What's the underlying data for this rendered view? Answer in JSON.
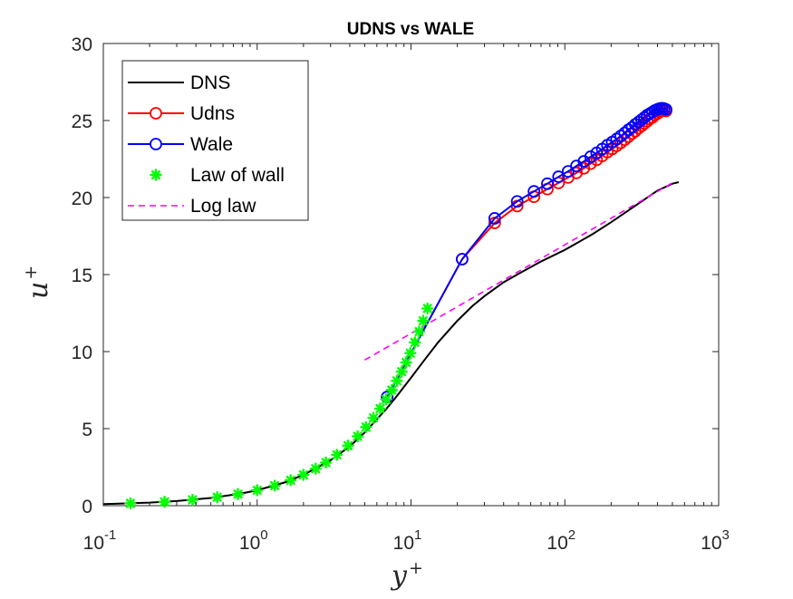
{
  "chart_data": {
    "type": "line",
    "title": "UDNS vs WALE",
    "xlabel": "y",
    "xlabel_sup": "+",
    "ylabel": "u",
    "ylabel_sup": "+",
    "xscale": "log",
    "xlim": [
      0.1,
      1000
    ],
    "ylim": [
      0,
      30
    ],
    "xticks": [
      {
        "base": "10",
        "exp": "-1",
        "value": 0.1
      },
      {
        "base": "10",
        "exp": "0",
        "value": 1
      },
      {
        "base": "10",
        "exp": "1",
        "value": 10
      },
      {
        "base": "10",
        "exp": "2",
        "value": 100
      },
      {
        "base": "10",
        "exp": "3",
        "value": 1000
      }
    ],
    "yticks": [
      {
        "label": "0",
        "value": 0
      },
      {
        "label": "5",
        "value": 5
      },
      {
        "label": "10",
        "value": 10
      },
      {
        "label": "15",
        "value": 15
      },
      {
        "label": "20",
        "value": 20
      },
      {
        "label": "25",
        "value": 25
      },
      {
        "label": "30",
        "value": 30
      }
    ],
    "grid": false,
    "legend_placement": "top-left",
    "series": [
      {
        "name": "DNS",
        "style": "solid-line",
        "color": "#000000",
        "x": [
          0.1,
          0.2,
          0.3,
          0.5,
          0.8,
          1,
          1.5,
          2,
          3,
          4,
          5,
          6,
          7,
          8,
          10,
          12,
          15,
          20,
          25,
          30,
          40,
          50,
          70,
          100,
          150,
          200,
          300,
          400,
          500,
          550
        ],
        "y": [
          0.1,
          0.2,
          0.3,
          0.5,
          0.8,
          1,
          1.5,
          2,
          2.95,
          3.85,
          4.75,
          5.6,
          6.35,
          7.05,
          8.3,
          9.35,
          10.6,
          12.0,
          12.95,
          13.6,
          14.5,
          15.05,
          15.85,
          16.6,
          17.6,
          18.4,
          19.6,
          20.45,
          20.9,
          21.0
        ]
      },
      {
        "name": "Udns",
        "style": "line-circle",
        "color": "#ff0000",
        "x": [
          7,
          21.5,
          35,
          49,
          63,
          77,
          91,
          105,
          119,
          133,
          147,
          161,
          175,
          189,
          203,
          217,
          231,
          245,
          259,
          273,
          287,
          301,
          315,
          329,
          343,
          357,
          371,
          385,
          399,
          413,
          427,
          441,
          455
        ],
        "y": [
          7.05,
          16.0,
          18.35,
          19.45,
          20.05,
          20.55,
          20.95,
          21.3,
          21.6,
          21.9,
          22.2,
          22.45,
          22.7,
          22.95,
          23.15,
          23.35,
          23.55,
          23.75,
          23.95,
          24.15,
          24.3,
          24.5,
          24.65,
          24.8,
          24.95,
          25.1,
          25.2,
          25.35,
          25.45,
          25.55,
          25.62,
          25.65,
          25.62
        ]
      },
      {
        "name": "Wale",
        "style": "line-circle",
        "color": "#0000ff",
        "x": [
          7,
          21.5,
          35,
          49,
          63,
          77,
          91,
          105,
          119,
          133,
          147,
          161,
          175,
          189,
          203,
          217,
          231,
          245,
          259,
          273,
          287,
          301,
          315,
          329,
          343,
          357,
          371,
          385,
          399,
          413,
          427,
          441,
          455
        ],
        "y": [
          7.05,
          16.0,
          18.65,
          19.75,
          20.4,
          20.9,
          21.35,
          21.7,
          22.05,
          22.35,
          22.65,
          22.9,
          23.15,
          23.4,
          23.6,
          23.8,
          24.0,
          24.2,
          24.4,
          24.55,
          24.75,
          24.9,
          25.05,
          25.2,
          25.35,
          25.45,
          25.55,
          25.65,
          25.72,
          25.78,
          25.8,
          25.78,
          25.72
        ]
      },
      {
        "name": "Law of wall",
        "style": "asterisk-markers",
        "color": "#00ff00",
        "x": [
          0.15,
          0.25,
          0.38,
          0.55,
          0.75,
          1.0,
          1.3,
          1.65,
          2.0,
          2.4,
          2.8,
          3.3,
          3.9,
          4.5,
          5.1,
          5.7,
          6.3,
          6.9,
          7.5,
          8.1,
          8.7,
          9.3,
          9.9,
          10.6,
          11.3,
          12.0,
          12.8
        ],
        "y": [
          0.15,
          0.25,
          0.38,
          0.55,
          0.75,
          1.0,
          1.3,
          1.65,
          2.0,
          2.4,
          2.8,
          3.3,
          3.9,
          4.5,
          5.1,
          5.7,
          6.3,
          6.9,
          7.5,
          8.1,
          8.7,
          9.3,
          9.9,
          10.6,
          11.3,
          12.0,
          12.8
        ]
      },
      {
        "name": "Log law",
        "style": "dashed-line",
        "color": "#ff00ff",
        "x": [
          5,
          500
        ],
        "y": [
          9.45,
          20.95
        ]
      }
    ]
  }
}
